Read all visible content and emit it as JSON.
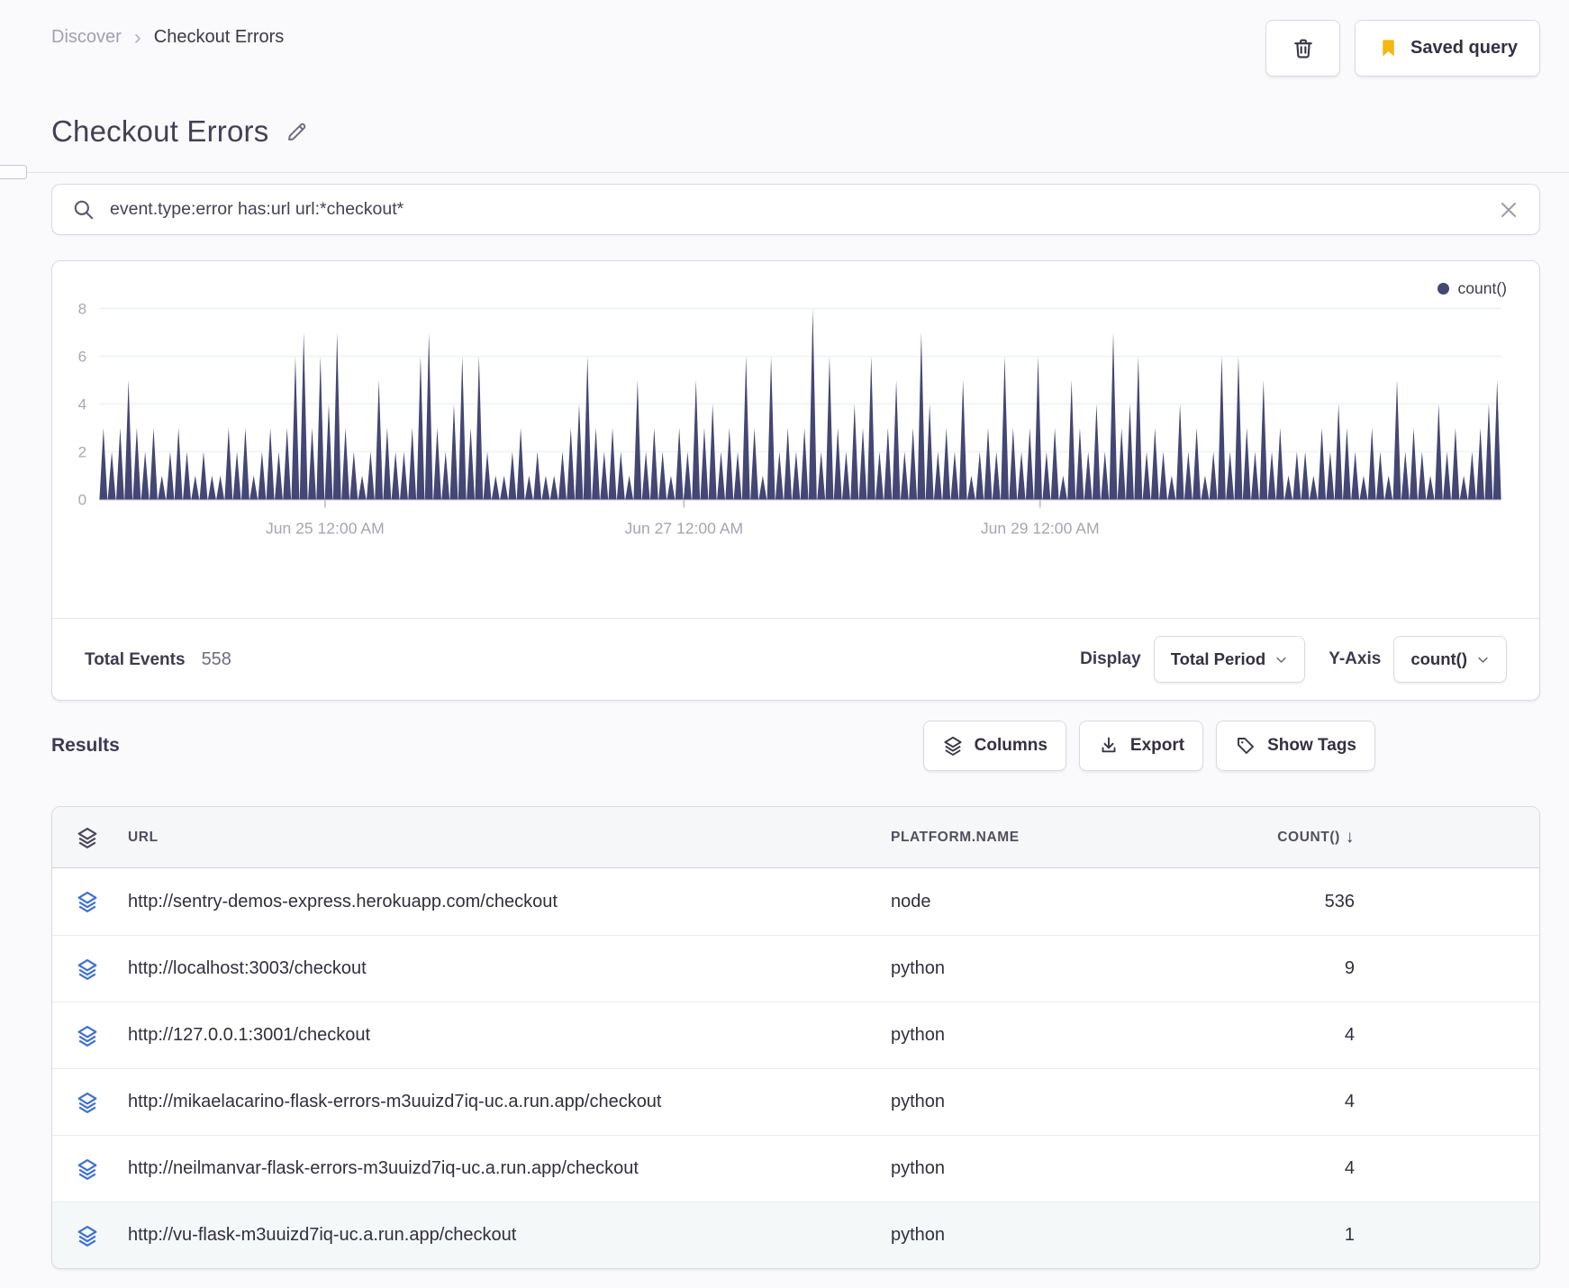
{
  "breadcrumb": {
    "parent": "Discover",
    "current": "Checkout Errors"
  },
  "header": {
    "title": "Checkout Errors",
    "saved_query_label": "Saved query"
  },
  "search": {
    "query": "event.type:error has:url url:*checkout*"
  },
  "chart_data": {
    "type": "area",
    "title": "",
    "legend": [
      {
        "label": "count()",
        "color": "#444674"
      }
    ],
    "xlabel": "time",
    "ylabel": "count()",
    "ylim": [
      0,
      8
    ],
    "y_ticks": [
      0,
      2,
      4,
      6,
      8
    ],
    "x_ticks": [
      {
        "label": "Jun 25 12:00 AM",
        "pos": 0.161
      },
      {
        "label": "Jun 27 12:00 AM",
        "pos": 0.417
      },
      {
        "label": "Jun 29 12:00 AM",
        "pos": 0.671
      }
    ],
    "grid": "horizontal-faint",
    "series_color": "#444674",
    "values": [
      3,
      2,
      3,
      5,
      3,
      2,
      3,
      1,
      2,
      3,
      2,
      1,
      2,
      1,
      1,
      3,
      2,
      3,
      1,
      2,
      3,
      2,
      3,
      6,
      7,
      3,
      6,
      4,
      7,
      3,
      2,
      1,
      2,
      5,
      3,
      2,
      2,
      3,
      6,
      7,
      3,
      2,
      4,
      6,
      3,
      6,
      2,
      1,
      1,
      2,
      3,
      1,
      2,
      1,
      1,
      2,
      3,
      4,
      6,
      3,
      2,
      3,
      2,
      1,
      5,
      2,
      3,
      2,
      1,
      3,
      2,
      5,
      3,
      4,
      2,
      3,
      2,
      6,
      3,
      1,
      6,
      2,
      3,
      2,
      3,
      8,
      2,
      6,
      3,
      2,
      4,
      3,
      6,
      2,
      3,
      5,
      2,
      3,
      7,
      4,
      2,
      3,
      2,
      5,
      1,
      2,
      3,
      2,
      6,
      3,
      2,
      3,
      6,
      2,
      3,
      1,
      5,
      3,
      2,
      4,
      2,
      7,
      3,
      4,
      6,
      2,
      3,
      2,
      1,
      4,
      2,
      3,
      1,
      2,
      6,
      2,
      6,
      3,
      2,
      5,
      2,
      3,
      1,
      2,
      2,
      1,
      3,
      2,
      4,
      3,
      2,
      1,
      3,
      2,
      1,
      5,
      2,
      3,
      2,
      1,
      4,
      2,
      3,
      1,
      2,
      3,
      4,
      5
    ]
  },
  "chart_footer": {
    "total_events_label": "Total Events",
    "total_events_value": "558",
    "display_label": "Display",
    "display_value": "Total Period",
    "yaxis_label": "Y-Axis",
    "yaxis_value": "count()"
  },
  "results": {
    "heading": "Results",
    "columns_button": "Columns",
    "export_button": "Export",
    "show_tags_button": "Show Tags"
  },
  "table": {
    "headers": {
      "url": "URL",
      "platform": "PLATFORM.NAME",
      "count": "COUNT()"
    },
    "rows": [
      {
        "url": "http://sentry-demos-express.herokuapp.com/checkout",
        "platform": "node",
        "count": "536"
      },
      {
        "url": "http://localhost:3003/checkout",
        "platform": "python",
        "count": "9"
      },
      {
        "url": "http://127.0.0.1:3001/checkout",
        "platform": "python",
        "count": "4"
      },
      {
        "url": "http://mikaelacarino-flask-errors-m3uuizd7iq-uc.a.run.app/checkout",
        "platform": "python",
        "count": "4"
      },
      {
        "url": "http://neilmanvar-flask-errors-m3uuizd7iq-uc.a.run.app/checkout",
        "platform": "python",
        "count": "4"
      },
      {
        "url": "http://vu-flask-m3uuizd7iq-uc.a.run.app/checkout",
        "platform": "python",
        "count": "1"
      }
    ]
  },
  "colors": {
    "accent": "#444674",
    "row_icon_blue": "#3b70d4",
    "bookmark_yellow": "#f2b712"
  }
}
